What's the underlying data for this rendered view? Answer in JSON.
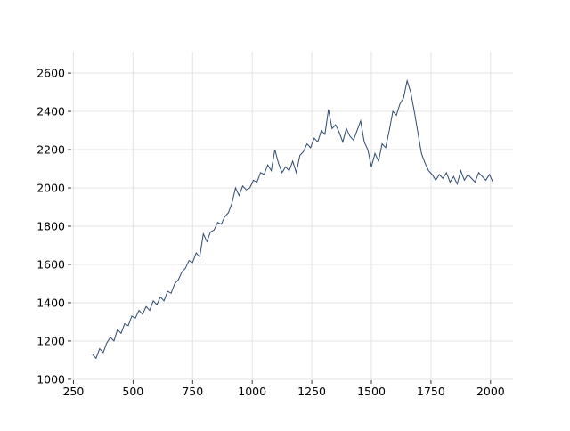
{
  "chart_data": {
    "type": "line",
    "x": [
      330,
      345,
      360,
      375,
      390,
      405,
      420,
      435,
      450,
      465,
      480,
      495,
      510,
      525,
      540,
      555,
      570,
      585,
      600,
      615,
      630,
      645,
      660,
      675,
      690,
      705,
      720,
      735,
      750,
      765,
      780,
      795,
      810,
      825,
      840,
      855,
      870,
      885,
      900,
      915,
      930,
      945,
      960,
      975,
      990,
      1005,
      1020,
      1035,
      1050,
      1065,
      1080,
      1095,
      1110,
      1125,
      1140,
      1155,
      1170,
      1185,
      1200,
      1215,
      1230,
      1245,
      1260,
      1275,
      1290,
      1305,
      1320,
      1335,
      1350,
      1365,
      1380,
      1395,
      1410,
      1425,
      1440,
      1455,
      1470,
      1485,
      1500,
      1515,
      1530,
      1545,
      1560,
      1575,
      1590,
      1605,
      1620,
      1635,
      1650,
      1665,
      1680,
      1695,
      1710,
      1725,
      1740,
      1755,
      1770,
      1785,
      1800,
      1815,
      1830,
      1845,
      1860,
      1875,
      1890,
      1905,
      1920,
      1935,
      1950,
      1965,
      1980,
      1995,
      2010
    ],
    "series": [
      {
        "color": "#2e4a6e",
        "values": [
          1130,
          1110,
          1160,
          1140,
          1190,
          1220,
          1200,
          1260,
          1240,
          1290,
          1280,
          1330,
          1320,
          1360,
          1340,
          1380,
          1360,
          1410,
          1390,
          1430,
          1410,
          1460,
          1450,
          1500,
          1520,
          1560,
          1580,
          1620,
          1610,
          1660,
          1640,
          1760,
          1720,
          1770,
          1780,
          1820,
          1810,
          1850,
          1870,
          1920,
          2000,
          1960,
          2010,
          1990,
          2000,
          2040,
          2030,
          2080,
          2070,
          2120,
          2090,
          2200,
          2130,
          2080,
          2110,
          2090,
          2140,
          2080,
          2170,
          2190,
          2230,
          2210,
          2260,
          2240,
          2300,
          2280,
          2410,
          2310,
          2330,
          2290,
          2240,
          2310,
          2270,
          2250,
          2300,
          2350,
          2240,
          2200,
          2110,
          2180,
          2140,
          2230,
          2210,
          2300,
          2400,
          2380,
          2440,
          2470,
          2560,
          2500,
          2400,
          2290,
          2180,
          2130,
          2090,
          2070,
          2040,
          2070,
          2050,
          2080,
          2030,
          2060,
          2020,
          2090,
          2040,
          2070,
          2050,
          2030,
          2080,
          2060,
          2040,
          2070,
          2030
        ]
      }
    ],
    "xlim": [
      241,
      2094
    ],
    "ylim": [
      995,
      2712
    ],
    "xticks": [
      250,
      500,
      750,
      1000,
      1250,
      1500,
      1750,
      2000
    ],
    "yticks": [
      1000,
      1200,
      1400,
      1600,
      1800,
      2000,
      2200,
      2400,
      2600
    ],
    "grid": true
  }
}
